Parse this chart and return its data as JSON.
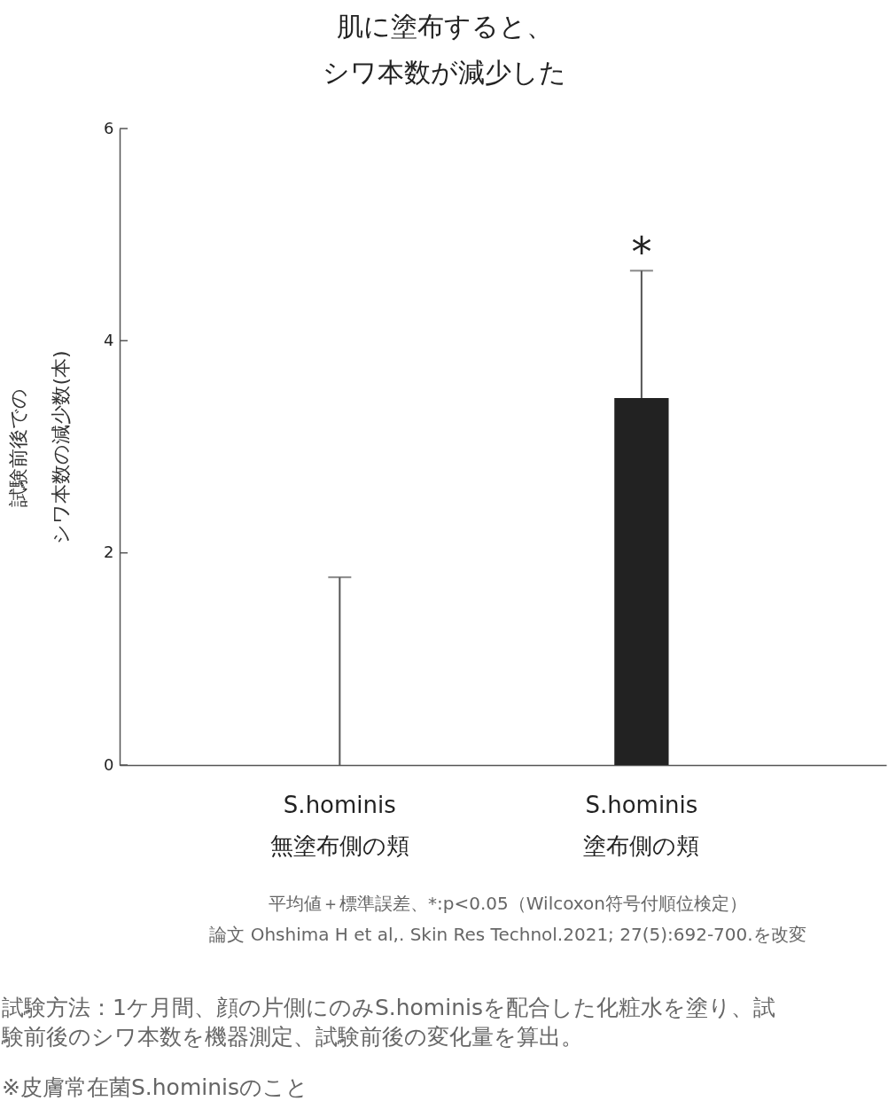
{
  "chart_data": {
    "type": "bar",
    "title": "肌に塗布すると、シワ本数が減少した",
    "ylabel": "試験前後でのシワ本数の減少数(本)",
    "categories": [
      "S.hominis\n無塗布側の頬",
      "S.hominis\n塗布側の頬"
    ],
    "values": [
      0,
      3.46
    ],
    "errors": [
      [
        0,
        1.77
      ],
      [
        3.46,
        4.66
      ]
    ],
    "color": "#222222",
    "ylim": [
      0,
      6
    ],
    "yticks": [
      0,
      2,
      4,
      6
    ],
    "annotations": [
      "*",
      "平均値＋標準誤差、*:p<0.05（Wilcoxon符号付順位検定）",
      "論文 Ohshima H et al,. Skin Res Technol.2021; 27(5):692-700.を改変",
      "試験方法：1ケ月間、顔の片側にのみS.hominisを配合した化粧水を塗り、試験前後のシワ本数を機器測定、試験前後の変化量を算出。",
      "※皮膚常在菌S.hominisのこと"
    ]
  }
}
